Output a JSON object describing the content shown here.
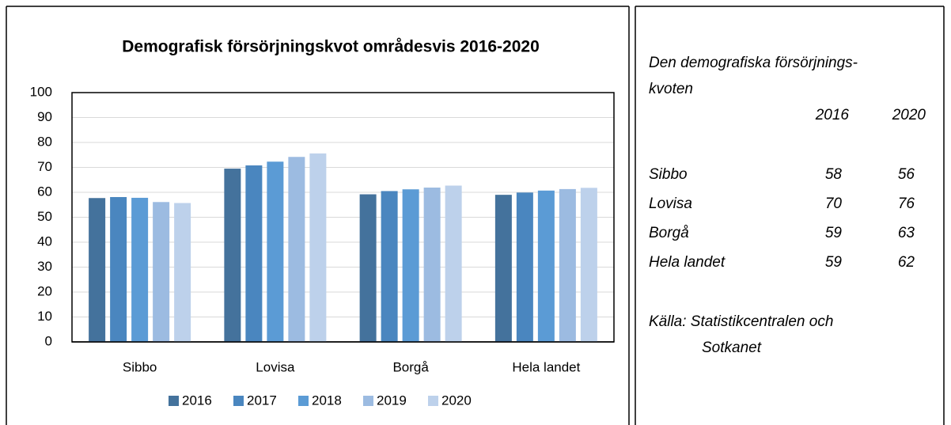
{
  "chart_data": {
    "type": "bar",
    "title": "Demografisk försörjningskvot områdesvis 2016-2020",
    "categories": [
      "Sibbo",
      "Lovisa",
      "Borgå",
      "Hela landet"
    ],
    "series": [
      {
        "name": "2016",
        "color": "#44729c",
        "values": [
          57.7,
          69.5,
          59.2,
          59.0
        ]
      },
      {
        "name": "2017",
        "color": "#4a86bf",
        "values": [
          58.1,
          70.8,
          60.5,
          59.9
        ]
      },
      {
        "name": "2018",
        "color": "#5b9bd5",
        "values": [
          57.8,
          72.3,
          61.2,
          60.7
        ]
      },
      {
        "name": "2019",
        "color": "#9cbbe1",
        "values": [
          56.1,
          74.2,
          61.9,
          61.3
        ]
      },
      {
        "name": "2020",
        "color": "#bdd1eb",
        "values": [
          55.7,
          75.6,
          62.7,
          61.8
        ]
      }
    ],
    "ylim": [
      0,
      100
    ],
    "yticks": [
      0,
      10,
      20,
      30,
      40,
      50,
      60,
      70,
      80,
      90,
      100
    ],
    "grid": true,
    "legend": "bottom"
  },
  "side_panel": {
    "heading": [
      "Den demografiska försörjnings-",
      "kvoten"
    ],
    "columns": [
      "2016",
      "2020"
    ],
    "rows": [
      [
        "Sibbo",
        "58",
        "56"
      ],
      [
        "Lovisa",
        "70",
        "76"
      ],
      [
        "Borgå",
        "59",
        "63"
      ],
      [
        "Hela landet",
        "59",
        "62"
      ]
    ],
    "source": [
      "Källa: Statistikcentralen och",
      "Sotkanet"
    ]
  }
}
